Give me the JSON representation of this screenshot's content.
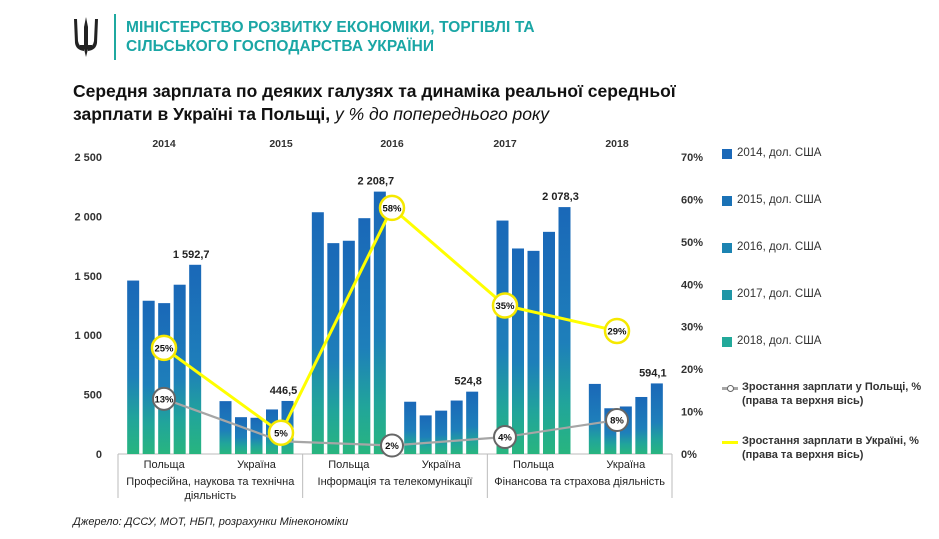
{
  "header": {
    "ministry_line1": "МІНІСТЕРСТВО РОЗВИТКУ ЕКОНОМІКИ, ТОРГІВЛІ ТА",
    "ministry_line2": "СІЛЬСЬКОГО ГОСПОДАРСТВА УКРАЇНИ",
    "emblem_icon": "trident-icon"
  },
  "title": {
    "main_line1": "Середня зарплата по деяких галузях та динаміка реальної середньої",
    "main_line2": "зарплати в Україні та Польщі,",
    "sub": "у % до попереднього року"
  },
  "source": "Джерело: ДССУ, МОТ, НБП, розрахунки Мінекономіки",
  "colors": {
    "ministry": "#1aa6a5",
    "bar_top": "#1a68b8",
    "bar_bottom": "#25b586",
    "poland_line": "#a6a6a6",
    "ukraine_line": "#ffff00"
  },
  "chart_data": {
    "type": "bar",
    "title": "Середня зарплата по деяких галузях та динаміка реальної середньої зарплати в Україні та Польщі",
    "categories": [
      "Польща",
      "Україна",
      "Польща",
      "Україна",
      "Польща",
      "Україна"
    ],
    "groups": [
      "Професійна, наукова та технічна діяльність",
      "Інформація та телекомунікації",
      "Фінансова та страхова діяльність"
    ],
    "years_top": [
      "2014",
      "2015",
      "2016",
      "2017",
      "2018"
    ],
    "yticks_left": [
      "2 500",
      "2 000",
      "1 500",
      "1 000",
      "500",
      "0"
    ],
    "yticks_right": [
      "70%",
      "60%",
      "50%",
      "40%",
      "30%",
      "20%",
      "10%",
      "0%"
    ],
    "ylim_left": [
      0,
      2500
    ],
    "ylim_right": [
      0,
      70
    ],
    "series": [
      {
        "name": "2014, дол. США",
        "values": [
          1460,
          445,
          2035,
          440,
          1965,
          590
        ]
      },
      {
        "name": "2015, дол. США",
        "values": [
          1290,
          310,
          1775,
          325,
          1730,
          385
        ]
      },
      {
        "name": "2016, дол. США",
        "values": [
          1270,
          305,
          1795,
          365,
          1710,
          400
        ]
      },
      {
        "name": "2017, дол. США",
        "values": [
          1425,
          375,
          1985,
          450,
          1870,
          480
        ]
      },
      {
        "name": "2018, дол. США",
        "values": [
          1592.7,
          446.5,
          2208.7,
          524.8,
          2078.3,
          594.1
        ]
      }
    ],
    "bar_labels": [
      "1 592,7",
      "446,5",
      "2 208,7",
      "524,8",
      "2 078,3",
      "594,1"
    ],
    "line_series": [
      {
        "name": "Зростання зарплати у Польщі, %  (права та верхня вісь)",
        "values": [
          13,
          3,
          2,
          4,
          8
        ],
        "labels": [
          "13%",
          "",
          "2%",
          "4%",
          "8%"
        ]
      },
      {
        "name": "Зростання зарплати в Україні, % (права та верхня вісь)",
        "values": [
          25,
          5,
          58,
          35,
          29
        ],
        "labels": [
          "25%",
          "5%",
          "58%",
          "35%",
          "29%"
        ]
      }
    ],
    "legend_position": "right",
    "grid": false
  }
}
